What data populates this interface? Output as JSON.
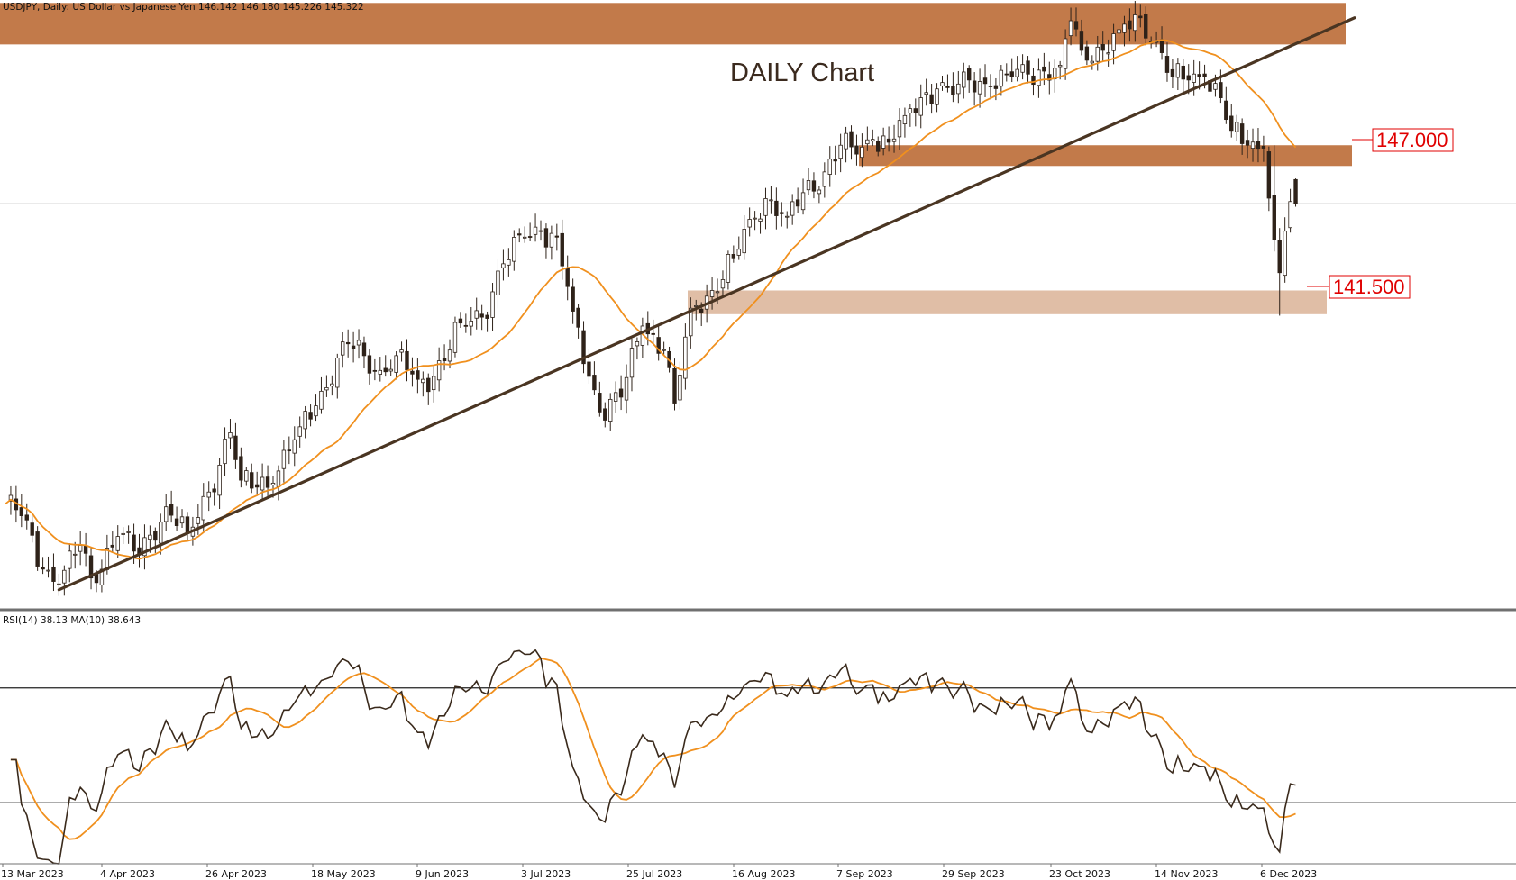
{
  "header": {
    "symbol_info": "USDJPY, Daily:  US Dollar vs Japanese Yen  146.142 146.180 145.226 145.322"
  },
  "chart_data": [
    {
      "type": "candlestick",
      "title": "DAILY Chart",
      "instrument": "USDJPY",
      "timeframe": "Daily",
      "last_bar": {
        "open": 146.142,
        "high": 146.18,
        "low": 145.226,
        "close": 145.322
      },
      "ylim": [
        131.9,
        152.2
      ],
      "current_price": 145.322,
      "x_tick_labels": [
        "13 Mar 2023",
        "4 Apr 2023",
        "26 Apr 2023",
        "18 May 2023",
        "9 Jun 2023",
        "3 Jul 2023",
        "25 Jul 2023",
        "16 Aug 2023",
        "7 Sep 2023",
        "29 Sep 2023",
        "23 Oct 2023",
        "14 Nov 2023",
        "6 Dec 2023"
      ],
      "anchors": [
        {
          "d": 0,
          "v": 135.2
        },
        {
          "d": 3,
          "v": 134.8
        },
        {
          "d": 7,
          "v": 133.0
        },
        {
          "d": 10,
          "v": 132.5
        },
        {
          "d": 14,
          "v": 133.8
        },
        {
          "d": 16,
          "v": 132.7
        },
        {
          "d": 21,
          "v": 134.1
        },
        {
          "d": 25,
          "v": 133.5
        },
        {
          "d": 30,
          "v": 135.1
        },
        {
          "d": 34,
          "v": 134.2
        },
        {
          "d": 38,
          "v": 135.6
        },
        {
          "d": 42,
          "v": 137.6
        },
        {
          "d": 44,
          "v": 136.0
        },
        {
          "d": 50,
          "v": 135.9
        },
        {
          "d": 55,
          "v": 137.8
        },
        {
          "d": 59,
          "v": 139.0
        },
        {
          "d": 64,
          "v": 140.6
        },
        {
          "d": 67,
          "v": 140.2
        },
        {
          "d": 70,
          "v": 139.7
        },
        {
          "d": 73,
          "v": 140.2
        },
        {
          "d": 77,
          "v": 139.4
        },
        {
          "d": 80,
          "v": 139.5
        },
        {
          "d": 85,
          "v": 141.3
        },
        {
          "d": 89,
          "v": 141.5
        },
        {
          "d": 93,
          "v": 143.3
        },
        {
          "d": 97,
          "v": 144.2
        },
        {
          "d": 100,
          "v": 144.4
        },
        {
          "d": 103,
          "v": 144.2
        },
        {
          "d": 106,
          "v": 141.7
        },
        {
          "d": 109,
          "v": 139.5
        },
        {
          "d": 111,
          "v": 138.3
        },
        {
          "d": 115,
          "v": 138.8
        },
        {
          "d": 119,
          "v": 141.2
        },
        {
          "d": 123,
          "v": 140.4
        },
        {
          "d": 125,
          "v": 138.6
        },
        {
          "d": 128,
          "v": 141.8
        },
        {
          "d": 132,
          "v": 142.4
        },
        {
          "d": 136,
          "v": 143.5
        },
        {
          "d": 139,
          "v": 144.8
        },
        {
          "d": 142,
          "v": 145.5
        },
        {
          "d": 146,
          "v": 144.9
        },
        {
          "d": 149,
          "v": 145.7
        },
        {
          "d": 153,
          "v": 146.4
        },
        {
          "d": 156,
          "v": 147.3
        },
        {
          "d": 159,
          "v": 147.0
        },
        {
          "d": 162,
          "v": 147.5
        },
        {
          "d": 165,
          "v": 147.4
        },
        {
          "d": 168,
          "v": 148.3
        },
        {
          "d": 171,
          "v": 148.9
        },
        {
          "d": 174,
          "v": 149.2
        },
        {
          "d": 177,
          "v": 149.0
        },
        {
          "d": 180,
          "v": 149.5
        },
        {
          "d": 184,
          "v": 149.3
        },
        {
          "d": 188,
          "v": 149.6
        },
        {
          "d": 191,
          "v": 149.7
        },
        {
          "d": 194,
          "v": 149.8
        },
        {
          "d": 197,
          "v": 150.0
        },
        {
          "d": 199,
          "v": 151.5
        },
        {
          "d": 201,
          "v": 150.5
        },
        {
          "d": 205,
          "v": 150.5
        },
        {
          "d": 208,
          "v": 151.2
        },
        {
          "d": 212,
          "v": 151.6
        },
        {
          "d": 215,
          "v": 150.8
        },
        {
          "d": 218,
          "v": 149.6
        },
        {
          "d": 221,
          "v": 149.5
        },
        {
          "d": 224,
          "v": 149.6
        },
        {
          "d": 227,
          "v": 148.9
        },
        {
          "d": 229,
          "v": 147.8
        },
        {
          "d": 232,
          "v": 147.3
        },
        {
          "d": 235,
          "v": 147.2
        },
        {
          "d": 237,
          "v": 144.1
        },
        {
          "d": 238,
          "v": 143.0
        },
        {
          "d": 239,
          "v": 144.4
        },
        {
          "d": 240,
          "v": 145.4
        },
        {
          "d": 241,
          "v": 145.3
        }
      ],
      "moving_average_period": 20,
      "zones": [
        {
          "name": "resistance-top",
          "from": 150.7,
          "to": 152.1,
          "color": "#c27a4a"
        },
        {
          "name": "zone-147",
          "from": 146.6,
          "to": 147.3,
          "color": "#c27a4a"
        },
        {
          "name": "zone-141-5",
          "from": 141.6,
          "to": 142.4,
          "color": "#e0bea6"
        }
      ],
      "level_labels": [
        {
          "text": "147.000",
          "value": 147.0
        },
        {
          "text": "141.500",
          "value": 141.5
        }
      ],
      "trendline": {
        "from": {
          "d": 10,
          "v": 132.3
        },
        "to": {
          "d": 252,
          "v": 151.6
        },
        "color": "#4a3522"
      },
      "colors": {
        "bull": "#ffffff",
        "bear": "#2e2219",
        "ma": "#f0901e",
        "line": "#3a2a1c"
      }
    },
    {
      "type": "line",
      "indicator": "RSI(14) 38.13 MA(10) 38.643",
      "label": "RSI(14) 38.13 MA(10) 38.643",
      "levels": [
        70,
        30
      ],
      "ylim": [
        10,
        90
      ],
      "series": [
        {
          "name": "RSI(14)",
          "color": "#3a2a1c"
        },
        {
          "name": "MA(10)",
          "color": "#f0901e"
        }
      ]
    }
  ]
}
